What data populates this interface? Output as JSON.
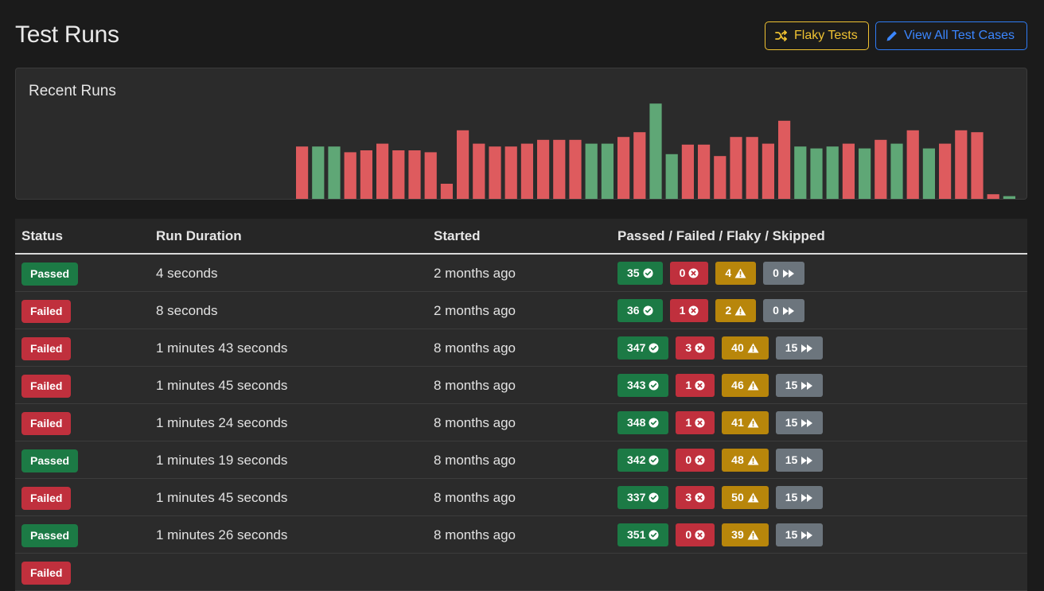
{
  "header": {
    "title": "Test Runs",
    "flaky_button": "Flaky Tests",
    "all_cases_button": "View All Test Cases",
    "flaky_color": "#f0c232",
    "primary_color": "#3b86ff"
  },
  "recent_runs": {
    "title": "Recent Runs",
    "pass_color": "#5fa776",
    "fail_color": "#de5b5e"
  },
  "chart_data": {
    "type": "bar",
    "title": "Recent Runs",
    "xlabel": "",
    "ylabel": "",
    "ylim": [
      0,
      100
    ],
    "values": [
      54,
      54,
      54,
      48,
      50,
      57,
      50,
      50,
      48,
      15,
      71,
      57,
      54,
      54,
      57,
      61,
      61,
      61,
      57,
      57,
      64,
      69,
      99,
      46,
      56,
      56,
      44,
      64,
      64,
      57,
      81,
      54,
      52,
      54,
      57,
      52,
      61,
      57,
      71,
      52,
      57,
      71,
      69,
      4,
      2
    ],
    "statuses": [
      "failed",
      "passed",
      "passed",
      "failed",
      "failed",
      "failed",
      "failed",
      "failed",
      "failed",
      "failed",
      "failed",
      "failed",
      "failed",
      "failed",
      "failed",
      "failed",
      "failed",
      "failed",
      "passed",
      "passed",
      "failed",
      "failed",
      "passed",
      "passed",
      "failed",
      "failed",
      "failed",
      "failed",
      "failed",
      "failed",
      "failed",
      "passed",
      "passed",
      "passed",
      "failed",
      "passed",
      "failed",
      "passed",
      "failed",
      "passed",
      "failed",
      "failed",
      "failed",
      "failed",
      "passed"
    ],
    "grid": false,
    "legend": "none"
  },
  "table": {
    "columns": [
      "Status",
      "Run Duration",
      "Started",
      "Passed / Failed / Flaky / Skipped"
    ],
    "rows": [
      {
        "status": "Passed",
        "duration": "4 seconds",
        "started": "2 months ago",
        "passed": "35",
        "failed": "0",
        "flaky": "4",
        "skipped": "0"
      },
      {
        "status": "Failed",
        "duration": "8 seconds",
        "started": "2 months ago",
        "passed": "36",
        "failed": "1",
        "flaky": "2",
        "skipped": "0"
      },
      {
        "status": "Failed",
        "duration": "1 minutes 43 seconds",
        "started": "8 months ago",
        "passed": "347",
        "failed": "3",
        "flaky": "40",
        "skipped": "15"
      },
      {
        "status": "Failed",
        "duration": "1 minutes 45 seconds",
        "started": "8 months ago",
        "passed": "343",
        "failed": "1",
        "flaky": "46",
        "skipped": "15"
      },
      {
        "status": "Failed",
        "duration": "1 minutes 24 seconds",
        "started": "8 months ago",
        "passed": "348",
        "failed": "1",
        "flaky": "41",
        "skipped": "15"
      },
      {
        "status": "Passed",
        "duration": "1 minutes 19 seconds",
        "started": "8 months ago",
        "passed": "342",
        "failed": "0",
        "flaky": "48",
        "skipped": "15"
      },
      {
        "status": "Failed",
        "duration": "1 minutes 45 seconds",
        "started": "8 months ago",
        "passed": "337",
        "failed": "3",
        "flaky": "50",
        "skipped": "15"
      },
      {
        "status": "Passed",
        "duration": "1 minutes 26 seconds",
        "started": "8 months ago",
        "passed": "351",
        "failed": "0",
        "flaky": "39",
        "skipped": "15"
      },
      {
        "status": "Failed",
        "duration": "",
        "started": "",
        "passed": "",
        "failed": "",
        "flaky": "",
        "skipped": ""
      }
    ]
  },
  "icons": {
    "flaky_button": "shuffle-icon",
    "all_cases_button": "pencil-icon",
    "passed": "check-circle-icon",
    "failed": "x-circle-icon",
    "flaky": "warning-triangle-icon",
    "skipped": "fast-forward-icon"
  }
}
